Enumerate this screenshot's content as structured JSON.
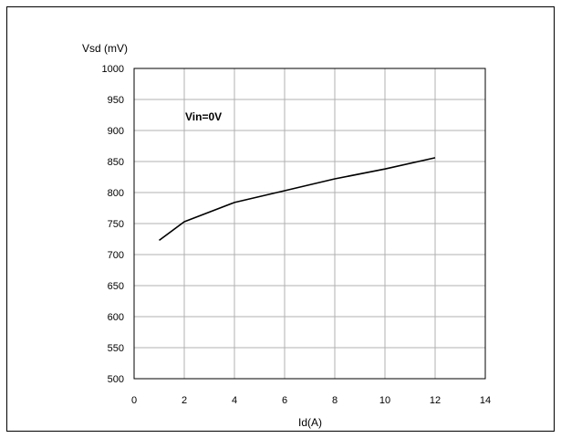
{
  "chart_data": {
    "type": "line",
    "title": "",
    "xlabel": "Id(A)",
    "ylabel": "Vsd (mV)",
    "xlim": [
      0,
      14
    ],
    "ylim": [
      500,
      1000
    ],
    "x_ticks": [
      0,
      2,
      4,
      6,
      8,
      10,
      12,
      14
    ],
    "y_ticks": [
      500,
      550,
      600,
      650,
      700,
      750,
      800,
      850,
      900,
      950,
      1000
    ],
    "grid": true,
    "annotation": "Vin=0V",
    "series": [
      {
        "x": [
          1,
          2,
          4,
          6,
          8,
          10,
          12
        ],
        "y": [
          723,
          753,
          784,
          803,
          822,
          838,
          856
        ]
      }
    ],
    "colors": {
      "line": "#000000",
      "grid": "#b0b0b0",
      "axis": "#000000"
    }
  }
}
